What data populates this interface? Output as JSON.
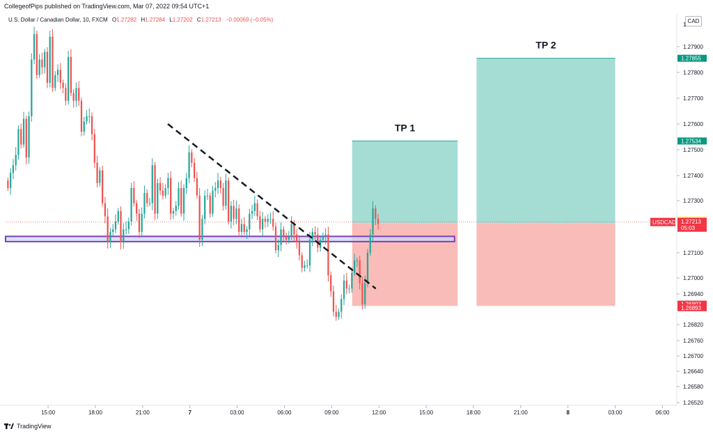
{
  "header": {
    "publisher": "CollegeofPips published on TradingView.com, Mar 07, 2022 09:54 UTC+1",
    "symbol_desc": "U.S. Dollar / Canadian Dollar, 10, FXCM",
    "o_label": "O",
    "o_value": "1.27282",
    "h_label": "H",
    "h_value": "1.27284",
    "l_label": "L",
    "l_value": "1.27202",
    "c_label": "C",
    "c_value": "1.27213",
    "change": "−0.00069 (−0.05%)",
    "currency": "CAD"
  },
  "footer": {
    "brand": "TradingView"
  },
  "colors": {
    "up": "#26a69a",
    "down": "#ef5350",
    "profit_zone": "#a5ddd5",
    "loss_zone": "#f9bcb8",
    "support_fill": "#c9d8f7",
    "support_border": "#7e3fb5",
    "trendline": "#131722"
  },
  "chart_data": {
    "type": "candlestick",
    "symbol": "USDCAD",
    "ylim": [
      1.2652,
      1.28
    ],
    "yticks": [
      1.2652,
      1.2658,
      1.2664,
      1.267,
      1.2676,
      1.2682,
      1.2694,
      1.27,
      1.271,
      1.273,
      1.274,
      1.275,
      1.276,
      1.277,
      1.278,
      1.279
    ],
    "ytick_labels": [
      "1.26520",
      "1.26580",
      "1.26640",
      "1.26700",
      "1.26760",
      "1.26820",
      "1.26940",
      "1.27000",
      "1.27100",
      "1.27300",
      "1.27400",
      "1.27500",
      "1.27600",
      "1.27700",
      "1.27800",
      "1.27900"
    ],
    "top_tick": "1",
    "x_start_hours": 12,
    "x_end_hours": 42,
    "xticks": [
      {
        "hours": 15,
        "label": "15:00"
      },
      {
        "hours": 18,
        "label": "18:00"
      },
      {
        "hours": 21,
        "label": "21:00"
      },
      {
        "hours": 24,
        "label": "7"
      },
      {
        "hours": 27,
        "label": "03:00"
      },
      {
        "hours": 30,
        "label": "06:00"
      },
      {
        "hours": 33,
        "label": "09:00"
      },
      {
        "hours": 36,
        "label": "12:00"
      },
      {
        "hours": 39,
        "label": "15:00"
      },
      {
        "hours": 42,
        "label": "18:00"
      },
      {
        "hours": 45,
        "label": "21:00"
      },
      {
        "hours": 48,
        "label": "8"
      },
      {
        "hours": 51,
        "label": "03:00"
      },
      {
        "hours": 54,
        "label": "06:00"
      }
    ],
    "x_range_hours": [
      12.3,
      54.6
    ],
    "candle_interval_minutes": 10,
    "candles_closes": [
      1.2735,
      1.2741,
      1.2744,
      1.2748,
      1.2758,
      1.2752,
      1.2762,
      1.2747,
      1.2763,
      1.2785,
      1.2795,
      1.2779,
      1.2785,
      1.2782,
      1.2788,
      1.2776,
      1.2794,
      1.2774,
      1.2779,
      1.2781,
      1.2776,
      1.2774,
      1.2769,
      1.2786,
      1.2772,
      1.2769,
      1.2774,
      1.2769,
      1.2757,
      1.2761,
      1.2763,
      1.2763,
      1.2756,
      1.2745,
      1.2737,
      1.2742,
      1.2729,
      1.2724,
      1.2714,
      1.2718,
      1.2719,
      1.2722,
      1.2726,
      1.2714,
      1.2719,
      1.2719,
      1.2722,
      1.2735,
      1.2729,
      1.2725,
      1.2718,
      1.2725,
      1.2733,
      1.2729,
      1.2729,
      1.2744,
      1.2725,
      1.2737,
      1.2734,
      1.2732,
      1.2735,
      1.2739,
      1.2725,
      1.2726,
      1.2728,
      1.2735,
      1.2725,
      1.2735,
      1.2739,
      1.2749,
      1.2745,
      1.2739,
      1.2732,
      1.2715,
      1.2723,
      1.2732,
      1.2732,
      1.2725,
      1.2734,
      1.2735,
      1.2738,
      1.2735,
      1.2728,
      1.2738,
      1.2722,
      1.2728,
      1.2723,
      1.2727,
      1.2718,
      1.2721,
      1.2718,
      1.2719,
      1.2725,
      1.2726,
      1.2729,
      1.2724,
      1.2719,
      1.2723,
      1.2722,
      1.2723,
      1.2723,
      1.272,
      1.2711,
      1.2713,
      1.2719,
      1.2716,
      1.2715,
      1.2716,
      1.2721,
      1.2717,
      1.2714,
      1.2709,
      1.2704,
      1.2705,
      1.2705,
      1.2715,
      1.2718,
      1.2717,
      1.2712,
      1.2715,
      1.2716,
      1.2717,
      1.2701,
      1.2695,
      1.2687,
      1.2685,
      1.2687,
      1.2692,
      1.2699,
      1.2696,
      1.2696,
      1.2702,
      1.2707,
      1.2707,
      1.2698,
      1.269,
      1.2698,
      1.271,
      1.2717,
      1.2727,
      1.2723,
      1.2721
    ],
    "support_zone": {
      "x_from_hours": 12.3,
      "x_to_hours": 40.8,
      "y_low": 1.27143,
      "y_high": 1.27163
    },
    "trendline": {
      "x1_hours": 22.6,
      "y1": 1.276,
      "x2_hours": 35.8,
      "y2": 1.2696
    },
    "positions": [
      {
        "label": "TP 1",
        "x_from_hours": 34.3,
        "x_to_hours": 41.0,
        "entry": 1.27214,
        "target": 1.27534,
        "stop": 1.26893
      },
      {
        "label": "TP 2",
        "x_from_hours": 42.2,
        "x_to_hours": 51.0,
        "entry": 1.27214,
        "target": 1.27855,
        "stop": 1.26893
      }
    ],
    "price_tags": [
      {
        "value": 1.27855,
        "label": "1.27855",
        "kind": "profit"
      },
      {
        "value": 1.27534,
        "label": "1.27534",
        "kind": "profit"
      },
      {
        "value": 1.27225,
        "label": "1.27214",
        "kind": "entry"
      },
      {
        "value": 1.27203,
        "label": "1.27214",
        "kind": "entry"
      },
      {
        "value": 1.27218,
        "label": "1.27213",
        "kind": "last",
        "symbol": "USDCAD",
        "countdown": "05:03"
      },
      {
        "value": 1.269,
        "label": "1.26893",
        "kind": "stop"
      },
      {
        "value": 1.26886,
        "label": "1.26893",
        "kind": "stop"
      }
    ]
  }
}
